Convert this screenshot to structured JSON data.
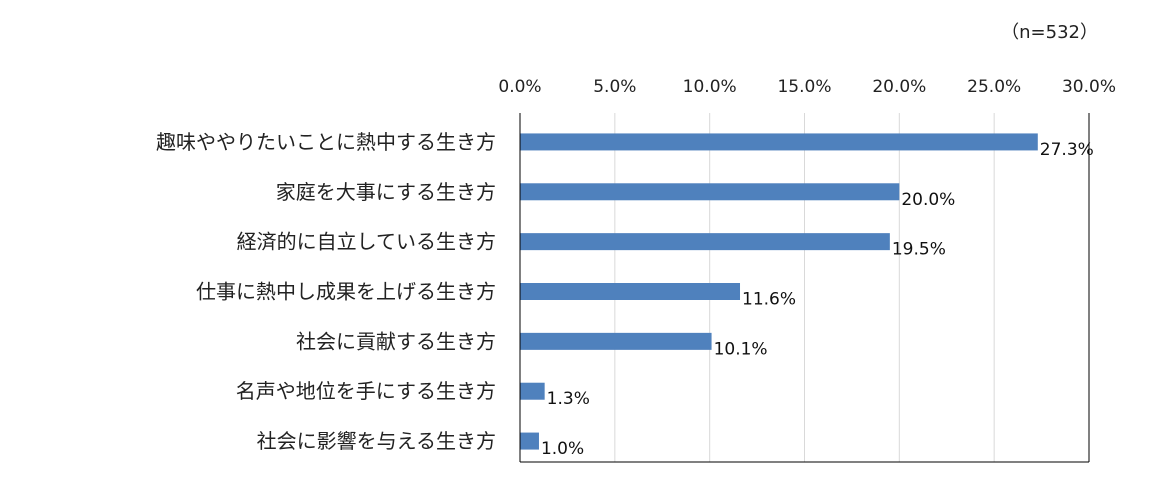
{
  "chart_data": {
    "type": "bar",
    "orientation": "horizontal",
    "sample_note": "（n=532）",
    "x_ticks": [
      "0.0%",
      "5.0%",
      "10.0%",
      "15.0%",
      "20.0%",
      "25.0%",
      "30.0%"
    ],
    "xlim": [
      0,
      30
    ],
    "x_axis_position": "top",
    "grid": true,
    "categories": [
      "趣味ややりたいことに熱中する生き方",
      "家庭を大事にする生き方",
      "経済的に自立している生き方",
      "仕事に熱中し成果を上げる生き方",
      "社会に貢献する生き方",
      "名声や地位を手にする生き方",
      "社会に影響を与える生き方"
    ],
    "values": [
      27.3,
      20.0,
      19.5,
      11.6,
      10.1,
      1.3,
      1.0
    ],
    "value_labels": [
      "27.3%",
      "20.0%",
      "19.5%",
      "11.6%",
      "10.1%",
      "1.3%",
      "1.0%"
    ],
    "bar_color": "#4f81bd",
    "grid_color": "#d9d9d9",
    "axis_color": "#000000"
  }
}
